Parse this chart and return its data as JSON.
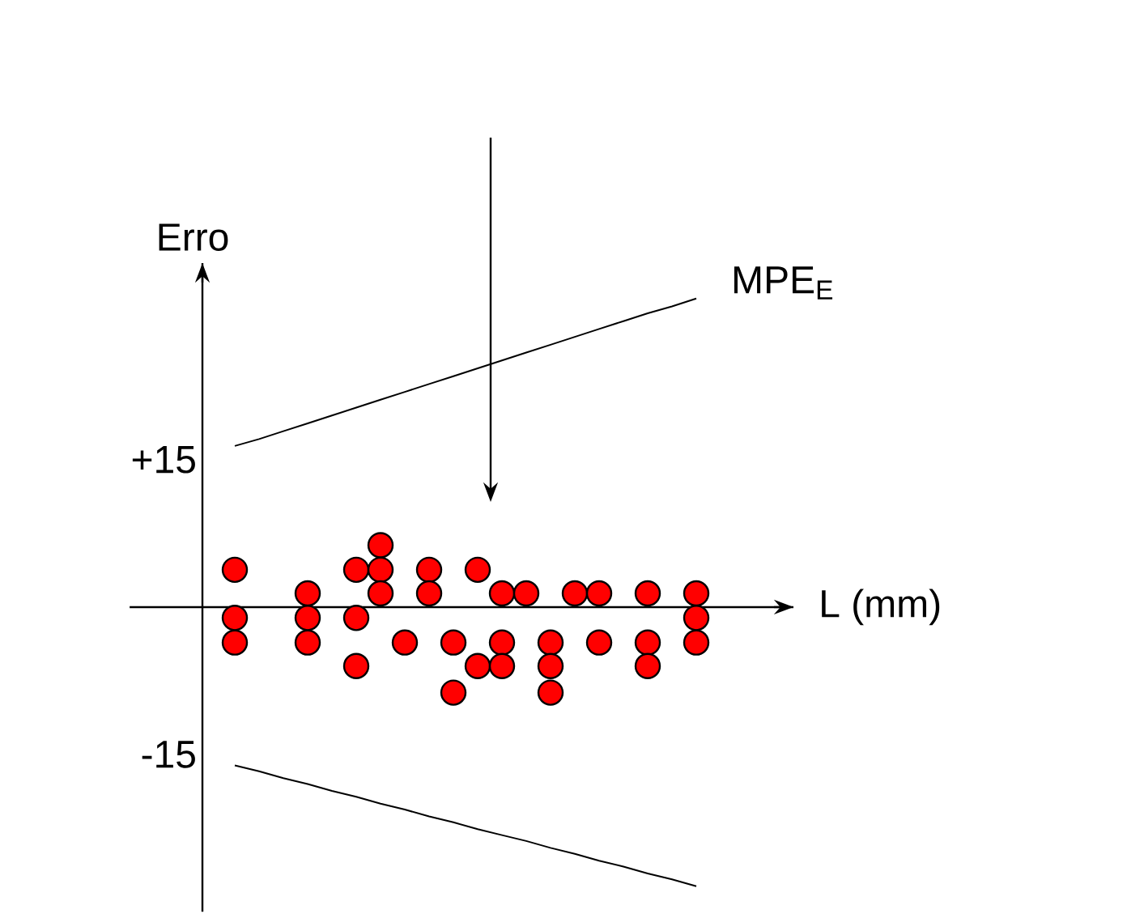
{
  "chart_data": {
    "type": "scatter",
    "xlabel": "L (mm)",
    "ylabel": "Erro",
    "categories": [
      null,
      null,
      null,
      null,
      null,
      null,
      null,
      null,
      null,
      null,
      null,
      null,
      null,
      null,
      null,
      null,
      null,
      null,
      null,
      null
    ],
    "ylim": [
      -31,
      35
    ],
    "yticks": [
      {
        "value": 15,
        "label": "+15"
      },
      {
        "value": -15,
        "label": "-15"
      }
    ],
    "tick_labels": "y",
    "annotations": [
      "MPE$_{E}$"
    ],
    "series": [
      {
        "color": "#ff0000",
        "marker": "circle",
        "values": [
          3.8,
          null,
          null,
          1.4,
          null,
          3.8,
          6.3,
          -3.6,
          3.8,
          -3.6,
          3.8,
          1.4,
          1.4,
          -3.6,
          1.4,
          1.4,
          null,
          1.4,
          null,
          1.4
        ]
      },
      {
        "color": "#ff0000",
        "marker": "circle",
        "values": [
          -1.1,
          null,
          null,
          -1.1,
          null,
          -1.1,
          3.8,
          null,
          1.4,
          -8.7,
          -6,
          -3.6,
          null,
          -6,
          null,
          -3.6,
          null,
          -3.6,
          null,
          -1.1
        ]
      },
      {
        "color": "#ff0000",
        "marker": "circle",
        "values": [
          -3.6,
          null,
          null,
          -3.6,
          null,
          -6,
          1.4,
          null,
          null,
          null,
          null,
          -6,
          null,
          -8.7,
          null,
          null,
          null,
          -6,
          null,
          -3.6
        ]
      },
      {
        "type": "line",
        "color": "#000000",
        "line_style": "solid",
        "values": [
          16.4,
          17.1,
          17.9,
          18.7,
          19.5,
          20.3,
          21.1,
          21.9,
          22.7,
          23.5,
          24.3,
          25.1,
          25.9,
          26.7,
          27.5,
          28.3,
          29.1,
          29.9,
          30.6,
          31.4
        ]
      },
      {
        "type": "line",
        "color": "#000000",
        "line_style": "solid",
        "values": [
          -16.1,
          -16.7,
          -17.4,
          -18.0,
          -18.7,
          -19.3,
          -20.0,
          -20.6,
          -21.3,
          -21.9,
          -22.6,
          -23.2,
          -23.8,
          -24.5,
          -25.1,
          -25.8,
          -26.4,
          -27.1,
          -27.7,
          -28.4
        ]
      }
    ]
  }
}
